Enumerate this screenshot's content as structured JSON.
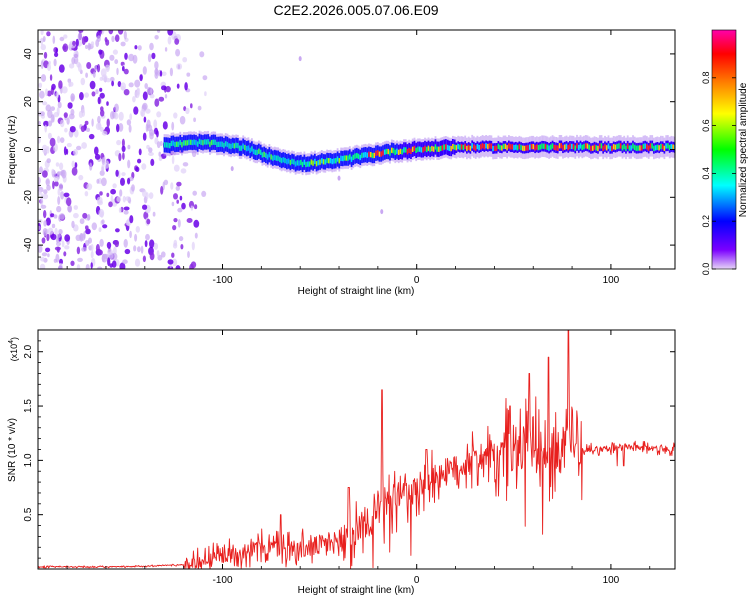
{
  "title": "C2E2.2026.005.07.06.E09",
  "chart_data": [
    {
      "type": "heatmap",
      "panel": "spectrogram",
      "xlabel": "Height of straight line (km)",
      "ylabel": "Frequency (Hz)",
      "xlim": [
        -195,
        133
      ],
      "ylim": [
        -50,
        50
      ],
      "xticks": [
        -100,
        0,
        100
      ],
      "xtick_labels": [
        "-100",
        "0",
        "100"
      ],
      "yticks": [
        -40,
        -20,
        0,
        20,
        40
      ],
      "ytick_labels": [
        "-40",
        "-20",
        "0",
        "20",
        "40"
      ],
      "ridge_centre_hz": {
        "x": [
          -130,
          -110,
          -90,
          -75,
          -60,
          -45,
          -30,
          -15,
          0,
          20,
          40,
          60,
          80,
          100,
          133
        ],
        "y": [
          2,
          3,
          1,
          -3,
          -6,
          -5,
          -3,
          -1,
          0,
          1,
          1,
          1,
          1,
          1,
          1
        ]
      },
      "noise_region_km": [
        -195,
        -108
      ],
      "colorbar": {
        "label": "Normalized spectral amplitude",
        "range": [
          0.0,
          1.0
        ],
        "ticks": [
          0.0,
          0.2,
          0.4,
          0.6,
          0.8
        ],
        "tick_labels": [
          "0.0",
          "0.2",
          "0.4",
          "0.6",
          "0.8"
        ],
        "colors": [
          "#e6d5f7",
          "#7b00ff",
          "#0000ff",
          "#00ffff",
          "#00ff00",
          "#ffff00",
          "#ff7f00",
          "#ff0000",
          "#ff00aa"
        ]
      }
    },
    {
      "type": "line",
      "panel": "snr",
      "xlabel": "Height of straight line (km)",
      "ylabel": "SNR (10 * v/v)",
      "y_multiplier": "(x10",
      "y_exponent": "4",
      "y_multiplier_close": ")",
      "xlim": [
        -195,
        133
      ],
      "ylim": [
        0,
        2.2
      ],
      "xticks": [
        -100,
        0,
        100
      ],
      "xtick_labels": [
        "-100",
        "0",
        "100"
      ],
      "yticks": [
        0.5,
        1.0,
        1.5,
        2.0
      ],
      "ytick_labels": [
        "0.5",
        "1.0",
        "1.5",
        "2.0"
      ],
      "series": [
        {
          "name": "SNR",
          "color": "#e8201e",
          "envelope_x": [
            -195,
            -150,
            -120,
            -100,
            -80,
            -60,
            -40,
            -25,
            -10,
            10,
            30,
            50,
            70,
            90,
            110,
            133
          ],
          "envelope_y": [
            0.02,
            0.02,
            0.04,
            0.12,
            0.2,
            0.18,
            0.25,
            0.45,
            0.65,
            0.85,
            1.0,
            1.1,
            1.1,
            1.1,
            1.12,
            1.1
          ],
          "peaks_x": [
            -70,
            -35,
            -18,
            5,
            48,
            58,
            68,
            78
          ],
          "peaks_y": [
            0.5,
            0.75,
            1.65,
            1.1,
            1.5,
            1.8,
            1.95,
            2.2
          ]
        }
      ]
    }
  ]
}
